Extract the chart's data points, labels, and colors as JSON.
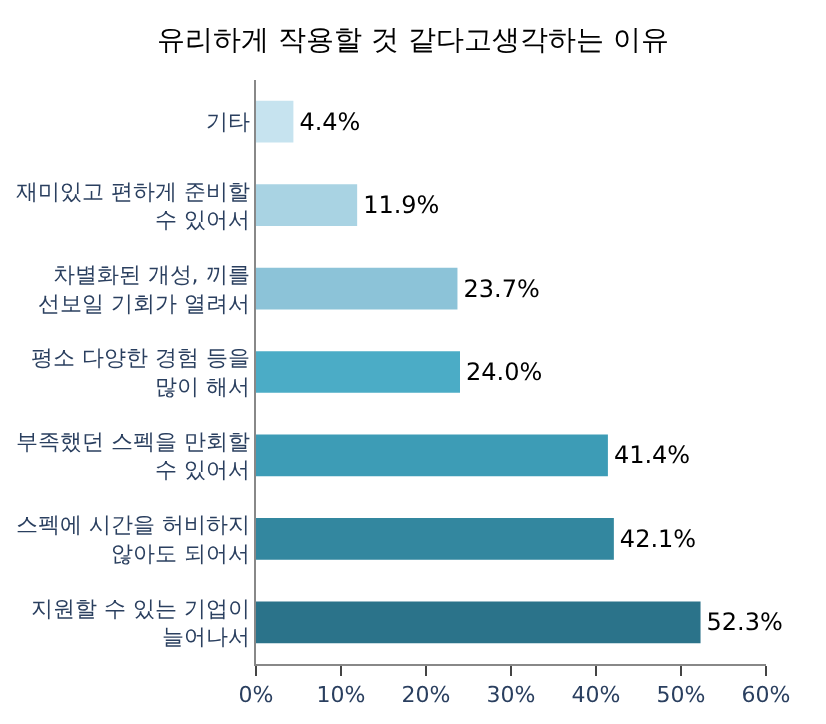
{
  "chart_data": {
    "type": "bar",
    "orientation": "horizontal",
    "title": "유리하게 작용할 것 같다고생각하는 이유",
    "categories": [
      "기타",
      "재미있고 편하게 준비할 수 있어서",
      "차별화된 개성, 끼를 선보일 기회가 열려서",
      "평소 다양한 경험 등을 많이 해서",
      "부족했던 스펙을 만회할 수 있어서",
      "스펙에 시간을 허비하지 않아도 되어서",
      "지원할 수 있는 기업이 늘어나서"
    ],
    "values": [
      4.4,
      11.9,
      23.7,
      24.0,
      41.4,
      42.1,
      52.3
    ],
    "value_labels": [
      "4.4%",
      "11.9%",
      "23.7%",
      "24.0%",
      "41.4%",
      "42.1%",
      "52.3%"
    ],
    "colors": [
      "#c6e3ef",
      "#a9d3e3",
      "#8cc3d8",
      "#4bacc6",
      "#3d9cb6",
      "#33879f",
      "#2b738a"
    ],
    "xlim": [
      0,
      60
    ],
    "xticks": [
      {
        "value": 0,
        "label": "0%"
      },
      {
        "value": 10,
        "label": "10%"
      },
      {
        "value": 20,
        "label": "20%"
      },
      {
        "value": 30,
        "label": "30%"
      },
      {
        "value": 40,
        "label": "40%"
      },
      {
        "value": 50,
        "label": "50%"
      },
      {
        "value": 60,
        "label": "60%"
      }
    ],
    "tick_labels": "xy"
  }
}
